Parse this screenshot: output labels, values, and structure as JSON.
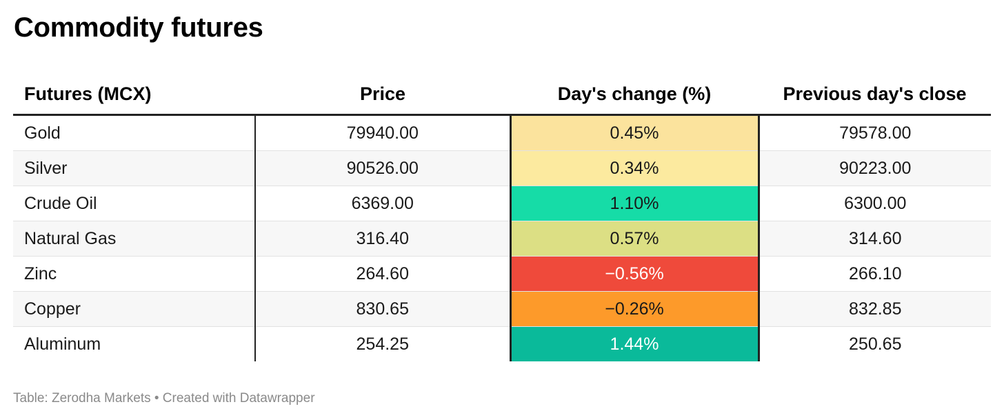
{
  "title": "Commodity futures",
  "footer": "Table: Zerodha Markets • Created with Datawrapper",
  "chart_data": {
    "type": "table",
    "title": "Commodity futures",
    "columns": [
      "Futures (MCX)",
      "Price",
      "Day's change (%)",
      "Previous day's close"
    ],
    "rows": [
      {
        "name": "Gold",
        "price": "79940.00",
        "change": "0.45%",
        "prev": "79578.00",
        "color": "#fbe39d",
        "text": "#1a1a1a"
      },
      {
        "name": "Silver",
        "price": "90526.00",
        "change": "0.34%",
        "prev": "90223.00",
        "color": "#fcea9f",
        "text": "#1a1a1a"
      },
      {
        "name": "Crude Oil",
        "price": "6369.00",
        "change": "1.10%",
        "prev": "6300.00",
        "color": "#16dca7",
        "text": "#1a1a1a"
      },
      {
        "name": "Natural Gas",
        "price": "316.40",
        "change": "0.57%",
        "prev": "314.60",
        "color": "#dcdf84",
        "text": "#1a1a1a"
      },
      {
        "name": "Zinc",
        "price": "264.60",
        "change": "−0.56%",
        "prev": "266.10",
        "color": "#ef4a3b",
        "text": "#ffffff"
      },
      {
        "name": "Copper",
        "price": "830.65",
        "change": "−0.26%",
        "prev": "832.85",
        "color": "#fd9a2a",
        "text": "#1a1a1a"
      },
      {
        "name": "Aluminum",
        "price": "254.25",
        "change": "1.44%",
        "prev": "250.65",
        "color": "#0aba9a",
        "text": "#ffffff"
      }
    ],
    "change_values": [
      0.45,
      0.34,
      1.1,
      0.57,
      -0.56,
      -0.26,
      1.44
    ],
    "source": "Zerodha Markets"
  }
}
